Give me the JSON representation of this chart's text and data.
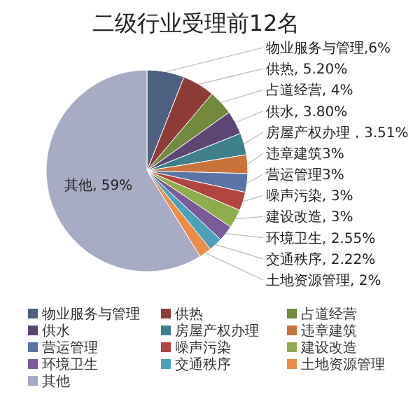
{
  "chart_data": {
    "type": "pie",
    "title": "二级行业受理前12名",
    "categories": [
      "物业服务与管理",
      "供热",
      "占道经营",
      "供水",
      "房屋产权办理",
      "违章建筑",
      "营运管理",
      "噪声污染",
      "建设改造",
      "环境卫生",
      "交通秩序",
      "土地资源管理",
      "其他"
    ],
    "values": [
      6,
      5.2,
      4,
      3.8,
      3.51,
      3,
      3,
      3,
      3,
      2.55,
      2.22,
      2,
      59
    ],
    "value_labels": [
      "物业服务与管理,6%",
      "供热, 5.20%",
      "占道经营, 4%",
      "供水, 3.80%",
      "房屋产权办理，3.51%",
      "违章建筑3%",
      "营运管理3%",
      "噪声污染, 3%",
      "建设改造, 3%",
      "环境卫生, 2.55%",
      "交通秩序, 2.22%",
      "土地资源管理, 2%",
      "其他, 59%"
    ],
    "colors": [
      "#4f6180",
      "#8e3b3a",
      "#728a3e",
      "#5d4673",
      "#3f7e8b",
      "#c9733a",
      "#5b74a8",
      "#b2443f",
      "#8fad4c",
      "#7a5a98",
      "#4aa3b8",
      "#ec8c49",
      "#a8abc4"
    ],
    "legend": "bottom"
  }
}
